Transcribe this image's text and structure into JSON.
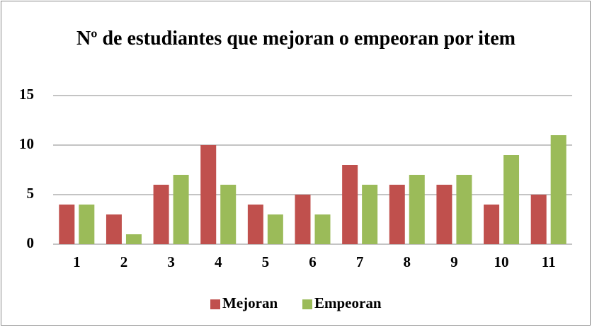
{
  "chart_data": {
    "type": "bar",
    "title": "Nº de estudiantes que mejoran o empeoran por item",
    "categories": [
      "1",
      "2",
      "3",
      "4",
      "5",
      "6",
      "7",
      "8",
      "9",
      "10",
      "11"
    ],
    "series": [
      {
        "name": "Mejoran",
        "color": "#c0504d",
        "values": [
          4,
          3,
          6,
          10,
          4,
          5,
          8,
          6,
          6,
          4,
          5
        ]
      },
      {
        "name": "Empeoran",
        "color": "#9bbb59",
        "values": [
          4,
          1,
          7,
          6,
          3,
          3,
          6,
          7,
          7,
          9,
          11
        ]
      }
    ],
    "ylim": [
      0,
      15
    ],
    "yticks": [
      0,
      5,
      10,
      15
    ],
    "grid": true,
    "legend": "bottom"
  }
}
